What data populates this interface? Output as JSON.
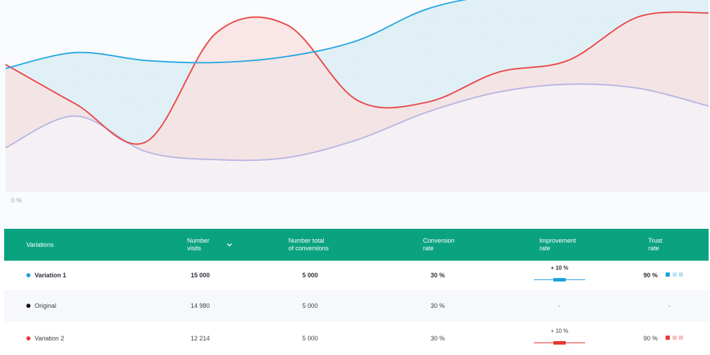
{
  "chart_data": {
    "type": "area",
    "y_axis_min_label": "0 %",
    "x": [
      0,
      1,
      2,
      3,
      4,
      5,
      6,
      7,
      8,
      9,
      10
    ],
    "series": [
      {
        "key": "variation-1",
        "color": "#29a9e1",
        "fill": "#dbeef3",
        "values": [
          62,
          70,
          66,
          65,
          68,
          76,
          92,
          99,
          100,
          100,
          100
        ]
      },
      {
        "key": "variation-2",
        "color": "#e84a4a",
        "fill": "#fbe3e3",
        "values": [
          64,
          44,
          25,
          80,
          84,
          46,
          45,
          60,
          66,
          88,
          90
        ]
      },
      {
        "key": "original",
        "color": "#b9b6e3",
        "fill": "#f6f6fb",
        "values": [
          22,
          38,
          20,
          16,
          17,
          26,
          40,
          50,
          54,
          52,
          43
        ]
      }
    ],
    "ylim": [
      0,
      100
    ]
  },
  "table": {
    "headers": {
      "variations": "Variations",
      "visits_1": "Number",
      "visits_2": "visits",
      "conversions_1": "Number total",
      "conversions_2": "of conversions",
      "rate_1": "Conversion",
      "rate_2": "rate",
      "improvement_1": "Improvement",
      "improvement_2": "rate",
      "trust_1": "Trust",
      "trust_2": "rate"
    },
    "rows": [
      {
        "name": "Variation 1",
        "visits": "15 000",
        "conversions": "5 000",
        "rate": "30 %",
        "improvement": "+ 10 %",
        "improvement_level": 0.5,
        "trust": "90 %",
        "color": "#1fa3dc",
        "color_light": "#b9e3f5",
        "highlight": true
      },
      {
        "name": "Original",
        "visits": "14 980",
        "conversions": "5 000",
        "rate": "30 %",
        "improvement": "-",
        "trust": "-",
        "color": "#111111"
      },
      {
        "name": "Variation 2",
        "visits": "12 214",
        "conversions": "5 000",
        "rate": "30 %",
        "improvement": "+ 10 %",
        "improvement_level": 0.5,
        "trust": "90 %",
        "color": "#e53935",
        "color_light": "#f6c0c0"
      }
    ]
  },
  "colors": {
    "header_bg": "#0ba37f",
    "accent_blue": "#29a9e1",
    "accent_red": "#e84a4a"
  }
}
